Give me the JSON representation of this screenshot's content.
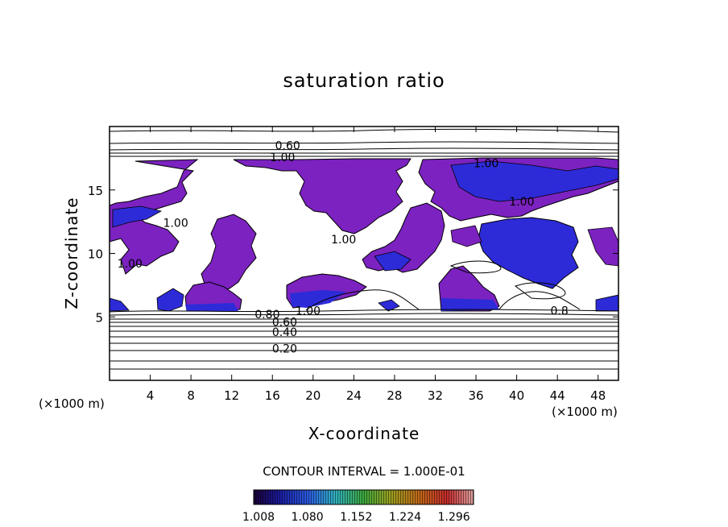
{
  "chart_data": {
    "type": "contour",
    "title": "saturation ratio",
    "xlabel": "X-coordinate",
    "ylabel": "Z-coordinate",
    "x_unit": "(×1000 m)",
    "z_unit": "(×1000 m)",
    "xlim": [
      0,
      50
    ],
    "ylim": [
      0,
      20
    ],
    "x_ticks": [
      4,
      8,
      12,
      16,
      20,
      24,
      28,
      32,
      36,
      40,
      44,
      48
    ],
    "y_ticks": [
      5,
      10,
      15
    ],
    "contour_interval_text": "CONTOUR INTERVAL = 1.000E-01",
    "contour_labels": [
      {
        "text": "0.60",
        "x": 17.5,
        "z": 18.5
      },
      {
        "text": "1.00",
        "x": 17.0,
        "z": 17.6
      },
      {
        "text": "1.00",
        "x": 37.0,
        "z": 17.1
      },
      {
        "text": "1.00",
        "x": 6.5,
        "z": 12.4
      },
      {
        "text": "1.00",
        "x": 23.0,
        "z": 11.1
      },
      {
        "text": "1.00",
        "x": 40.5,
        "z": 14.1
      },
      {
        "text": "1.00",
        "x": 2.0,
        "z": 9.2
      },
      {
        "text": "0.80",
        "x": 15.5,
        "z": 5.2
      },
      {
        "text": "1.00",
        "x": 19.5,
        "z": 5.5
      },
      {
        "text": "0.60",
        "x": 17.2,
        "z": 4.6
      },
      {
        "text": "0.40",
        "x": 17.2,
        "z": 3.8
      },
      {
        "text": "0.20",
        "x": 17.2,
        "z": 2.5
      },
      {
        "text": "0.8",
        "x": 44.2,
        "z": 5.5
      }
    ],
    "colorbar": {
      "ticks": [
        "1.008",
        "1.080",
        "1.152",
        "1.224",
        "1.296"
      ],
      "min": 1.008,
      "max": 1.332
    },
    "colors": {
      "fill_main": "#7b22c0",
      "fill_blue": "#2d2bd8",
      "line": "#000000"
    }
  }
}
